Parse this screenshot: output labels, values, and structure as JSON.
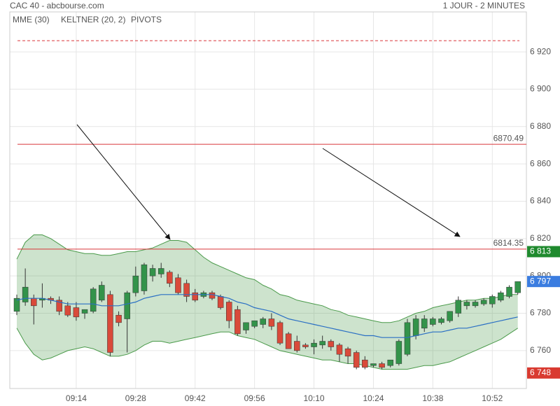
{
  "chart_data": {
    "type": "candlestick",
    "title": "CAC 40 - abcbourse.com",
    "subtitle": "1 JOUR - 2 MINUTES",
    "x": [
      "09:00",
      "09:02",
      "09:04",
      "09:06",
      "09:08",
      "09:10",
      "09:12",
      "09:14",
      "09:16",
      "09:18",
      "09:20",
      "09:22",
      "09:24",
      "09:26",
      "09:28",
      "09:30",
      "09:32",
      "09:34",
      "09:36",
      "09:38",
      "09:40",
      "09:42",
      "09:44",
      "09:46",
      "09:48",
      "09:50",
      "09:52",
      "09:54",
      "09:56",
      "09:58",
      "10:00",
      "10:02",
      "10:04",
      "10:06",
      "10:08",
      "10:10",
      "10:12",
      "10:14",
      "10:16",
      "10:18",
      "10:20",
      "10:22",
      "10:24",
      "10:26",
      "10:28",
      "10:30",
      "10:32",
      "10:34",
      "10:36",
      "10:38",
      "10:40",
      "10:42",
      "10:44",
      "10:46",
      "10:48",
      "10:50",
      "10:52",
      "10:54",
      "10:56",
      "10:58"
    ],
    "open": [
      6781,
      6786,
      6788,
      6787,
      6788,
      6787,
      6784,
      6783,
      6780,
      6781,
      6787,
      6790,
      6779,
      6777,
      6791,
      6792,
      6800,
      6801,
      6802,
      6799,
      6796,
      6791,
      6789,
      6791,
      6789,
      6786,
      6782,
      6771,
      6773,
      6774,
      6777,
      6775,
      6769,
      6765,
      6763,
      6762,
      6763,
      6765,
      6763,
      6761,
      6759,
      6755,
      6752,
      6753,
      6752,
      6753,
      6758,
      6768,
      6772,
      6774,
      6775,
      6776,
      6780,
      6784,
      6784,
      6785,
      6785,
      6787,
      6789,
      6791
    ],
    "high": [
      6790,
      6804,
      6790,
      6796,
      6789,
      6789,
      6786,
      6786,
      6782,
      6794,
      6797,
      6792,
      6781,
      6792,
      6805,
      6807,
      6806,
      6807,
      6803,
      6801,
      6798,
      6793,
      6792,
      6792,
      6790,
      6787,
      6784,
      6773,
      6776,
      6778,
      6780,
      6776,
      6770,
      6768,
      6764,
      6766,
      6768,
      6766,
      6764,
      6762,
      6760,
      6757,
      6753,
      6754,
      6755,
      6766,
      6777,
      6779,
      6779,
      6778,
      6778,
      6781,
      6789,
      6787,
      6787,
      6788,
      6790,
      6792,
      6795,
      6797
    ],
    "low": [
      6779,
      6784,
      6774,
      6783,
      6785,
      6779,
      6778,
      6776,
      6777,
      6780,
      6786,
      6757,
      6773,
      6759,
      6789,
      6790,
      6797,
      6799,
      6794,
      6790,
      6786,
      6786,
      6788,
      6787,
      6782,
      6772,
      6768,
      6769,
      6772,
      6772,
      6771,
      6763,
      6761,
      6759,
      6761,
      6758,
      6761,
      6760,
      6754,
      6753,
      6750,
      6750,
      6751,
      6750,
      6751,
      6752,
      6757,
      6766,
      6770,
      6773,
      6774,
      6775,
      6778,
      6782,
      6783,
      6784,
      6783,
      6786,
      6788,
      6790
    ],
    "close": [
      6788,
      6794,
      6784,
      6788,
      6787,
      6781,
      6779,
      6778,
      6782,
      6793,
      6795,
      6759,
      6775,
      6791,
      6800,
      6806,
      6804,
      6804,
      6796,
      6791,
      6789,
      6787,
      6791,
      6788,
      6783,
      6776,
      6769,
      6775,
      6776,
      6777,
      6773,
      6764,
      6761,
      6760,
      6762,
      6764,
      6765,
      6762,
      6758,
      6757,
      6751,
      6751,
      6753,
      6751,
      6755,
      6765,
      6775,
      6777,
      6777,
      6777,
      6777,
      6781,
      6787,
      6786,
      6786,
      6787,
      6789,
      6791,
      6794,
      6797
    ],
    "up_color": "#33934a",
    "down_color": "#d94a3a",
    "series": [
      {
        "name": "MME (30)",
        "color": "#2a6fc4",
        "values": [
          6787,
          6788,
          6788,
          6788,
          6787,
          6786,
          6785,
          6785,
          6785,
          6785,
          6784,
          6784,
          6784,
          6785,
          6786,
          6788,
          6789,
          6790,
          6790,
          6790,
          6790,
          6790,
          6790,
          6790,
          6789,
          6788,
          6786,
          6785,
          6783,
          6782,
          6781,
          6779,
          6777,
          6776,
          6775,
          6774,
          6773,
          6772,
          6771,
          6770,
          6769,
          6768,
          6768,
          6767,
          6767,
          6767,
          6767,
          6768,
          6769,
          6770,
          6770,
          6771,
          6772,
          6772,
          6773,
          6774,
          6775,
          6776,
          6777,
          6778
        ]
      },
      {
        "name": "KELTNER (20, 2)",
        "color": "#4a9a4a",
        "upper": [
          6809,
          6818,
          6822,
          6822,
          6820,
          6817,
          6814,
          6813,
          6812,
          6812,
          6811,
          6811,
          6812,
          6813,
          6813,
          6814,
          6815,
          6817,
          6819,
          6819,
          6818,
          6814,
          6810,
          6807,
          6805,
          6803,
          6801,
          6799,
          6798,
          6795,
          6793,
          6790,
          6789,
          6787,
          6786,
          6785,
          6784,
          6782,
          6781,
          6779,
          6778,
          6777,
          6776,
          6775,
          6775,
          6776,
          6778,
          6780,
          6781,
          6783,
          6784,
          6785,
          6786,
          6787,
          6787,
          6788,
          6788,
          6789,
          6790,
          6790
        ],
        "lower": [
          6772,
          6764,
          6758,
          6755,
          6756,
          6758,
          6760,
          6761,
          6762,
          6761,
          6759,
          6757,
          6757,
          6758,
          6760,
          6763,
          6765,
          6765,
          6764,
          6765,
          6766,
          6767,
          6768,
          6769,
          6770,
          6770,
          6768,
          6767,
          6766,
          6764,
          6762,
          6760,
          6759,
          6758,
          6757,
          6756,
          6755,
          6755,
          6754,
          6753,
          6753,
          6752,
          6751,
          6750,
          6750,
          6750,
          6750,
          6751,
          6752,
          6752,
          6753,
          6754,
          6756,
          6758,
          6760,
          6762,
          6764,
          6766,
          6769,
          6772
        ]
      }
    ],
    "pivots": {
      "name": "PIVOTS",
      "color": "#d9363a",
      "dashed_level": 6926,
      "levels": [
        6870.49,
        6814.35
      ]
    },
    "price_markers": [
      {
        "value": 6813,
        "label": "6 813",
        "color": "#1f8a2e"
      },
      {
        "value": 6797,
        "label": "6 797",
        "color": "#3b7de0"
      },
      {
        "value": 6748,
        "label": "6 748",
        "color": "#d93a30"
      }
    ],
    "ylim": [
      6739.7,
      6941.4
    ],
    "yticks": [
      {
        "value": 6760,
        "label": "6 760"
      },
      {
        "value": 6780,
        "label": "6 780"
      },
      {
        "value": 6800,
        "label": "6 800"
      },
      {
        "value": 6820,
        "label": "6 820"
      },
      {
        "value": 6840,
        "label": "6 840"
      },
      {
        "value": 6860,
        "label": "6 860"
      },
      {
        "value": 6880,
        "label": "6 880"
      },
      {
        "value": 6900,
        "label": "6 900"
      },
      {
        "value": 6920,
        "label": "6 920"
      }
    ],
    "xticks": [
      "09:14",
      "09:28",
      "09:42",
      "09:56",
      "10:10",
      "10:24",
      "10:38",
      "10:52"
    ],
    "grid": true
  }
}
